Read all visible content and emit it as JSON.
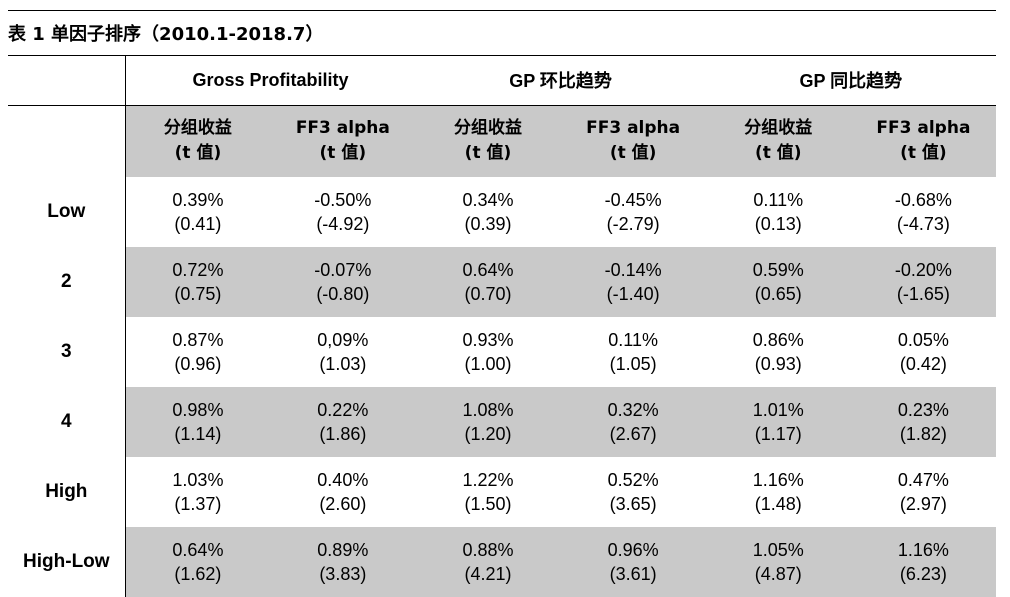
{
  "caption": "表 1  单因子排序（2010.1-2018.7）",
  "groups": [
    "Gross Profitability",
    "GP 环比趋势",
    "GP 同比趋势"
  ],
  "subheaders": [
    {
      "line1": "分组收益",
      "line2": "(t 值)"
    },
    {
      "line1": "FF3 alpha",
      "line2": "(t 值)"
    },
    {
      "line1": "分组收益",
      "line2": "(t 值)"
    },
    {
      "line1": "FF3 alpha",
      "line2": "(t 值)"
    },
    {
      "line1": "分组收益",
      "line2": "(t 值)"
    },
    {
      "line1": "FF3 alpha",
      "line2": "(t 值)"
    }
  ],
  "rows": [
    {
      "label": "Low",
      "cells": [
        {
          "v": "0.39%",
          "t": "(0.41)"
        },
        {
          "v": "-0.50%",
          "t": "(-4.92)"
        },
        {
          "v": "0.34%",
          "t": "(0.39)"
        },
        {
          "v": "-0.45%",
          "t": "(-2.79)"
        },
        {
          "v": "0.11%",
          "t": "(0.13)"
        },
        {
          "v": "-0.68%",
          "t": "(-4.73)"
        }
      ]
    },
    {
      "label": "2",
      "cells": [
        {
          "v": "0.72%",
          "t": "(0.75)"
        },
        {
          "v": "-0.07%",
          "t": "(-0.80)"
        },
        {
          "v": "0.64%",
          "t": "(0.70)"
        },
        {
          "v": "-0.14%",
          "t": "(-1.40)"
        },
        {
          "v": "0.59%",
          "t": "(0.65)"
        },
        {
          "v": "-0.20%",
          "t": "(-1.65)"
        }
      ]
    },
    {
      "label": "3",
      "cells": [
        {
          "v": "0.87%",
          "t": "(0.96)"
        },
        {
          "v": "0,09%",
          "t": "(1.03)"
        },
        {
          "v": "0.93%",
          "t": "(1.00)"
        },
        {
          "v": "0.11%",
          "t": "(1.05)"
        },
        {
          "v": "0.86%",
          "t": "(0.93)"
        },
        {
          "v": "0.05%",
          "t": "(0.42)"
        }
      ]
    },
    {
      "label": "4",
      "cells": [
        {
          "v": "0.98%",
          "t": "(1.14)"
        },
        {
          "v": "0.22%",
          "t": "(1.86)"
        },
        {
          "v": "1.08%",
          "t": "(1.20)"
        },
        {
          "v": "0.32%",
          "t": "(2.67)"
        },
        {
          "v": "1.01%",
          "t": "(1.17)"
        },
        {
          "v": "0.23%",
          "t": "(1.82)"
        }
      ]
    },
    {
      "label": "High",
      "cells": [
        {
          "v": "1.03%",
          "t": "(1.37)"
        },
        {
          "v": "0.40%",
          "t": "(2.60)"
        },
        {
          "v": "1.22%",
          "t": "(1.50)"
        },
        {
          "v": "0.52%",
          "t": "(3.65)"
        },
        {
          "v": "1.16%",
          "t": "(1.48)"
        },
        {
          "v": "0.47%",
          "t": "(2.97)"
        }
      ]
    },
    {
      "label": "High-Low",
      "cells": [
        {
          "v": "0.64%",
          "t": "(1.62)"
        },
        {
          "v": "0.89%",
          "t": "(3.83)"
        },
        {
          "v": "0.88%",
          "t": "(4.21)"
        },
        {
          "v": "0.96%",
          "t": "(3.61)"
        },
        {
          "v": "1.05%",
          "t": "(4.87)"
        },
        {
          "v": "1.16%",
          "t": "(6.23)"
        }
      ]
    }
  ],
  "colors": {
    "shade": "#c9c9c9",
    "rule": "#000000"
  }
}
